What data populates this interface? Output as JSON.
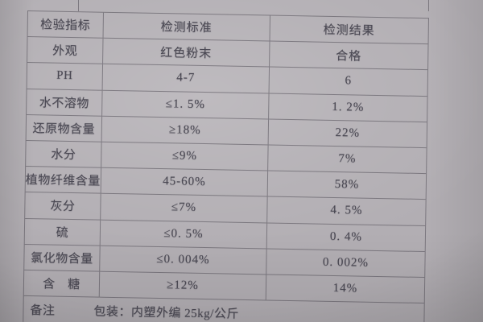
{
  "photo": {
    "table": {
      "headers": [
        "检验指标",
        "检测标准",
        "检测结果"
      ],
      "rows": [
        {
          "indicator": "外观",
          "standard": "红色粉末",
          "result": "合格"
        },
        {
          "indicator": "PH",
          "standard": "4-7",
          "result": "6"
        },
        {
          "indicator": "水不溶物",
          "standard": "≤1. 5%",
          "result": "1. 2%"
        },
        {
          "indicator": "还原物含量",
          "standard": "≥18%",
          "result": "22%"
        },
        {
          "indicator": "水分",
          "standard": "≤9%",
          "result": "7%"
        },
        {
          "indicator": "植物纤维含量",
          "standard": "45-60%",
          "result": "58%"
        },
        {
          "indicator": "灰分",
          "standard": "≤7%",
          "result": "4. 5%"
        },
        {
          "indicator": "硫",
          "standard": "≤0. 5%",
          "result": "0. 4%"
        },
        {
          "indicator": "氯化物含量",
          "standard": "≤0. 004%",
          "result": "0. 002%"
        },
        {
          "indicator": "含　糖",
          "standard": "≥12%",
          "result": "14%"
        }
      ]
    },
    "remarks": {
      "label": "备注",
      "content": "包装：内塑外编  25kg/公斤"
    },
    "colors": {
      "paper": "#b2aeb3",
      "ink": "#4b4954",
      "line": "#747078"
    }
  }
}
